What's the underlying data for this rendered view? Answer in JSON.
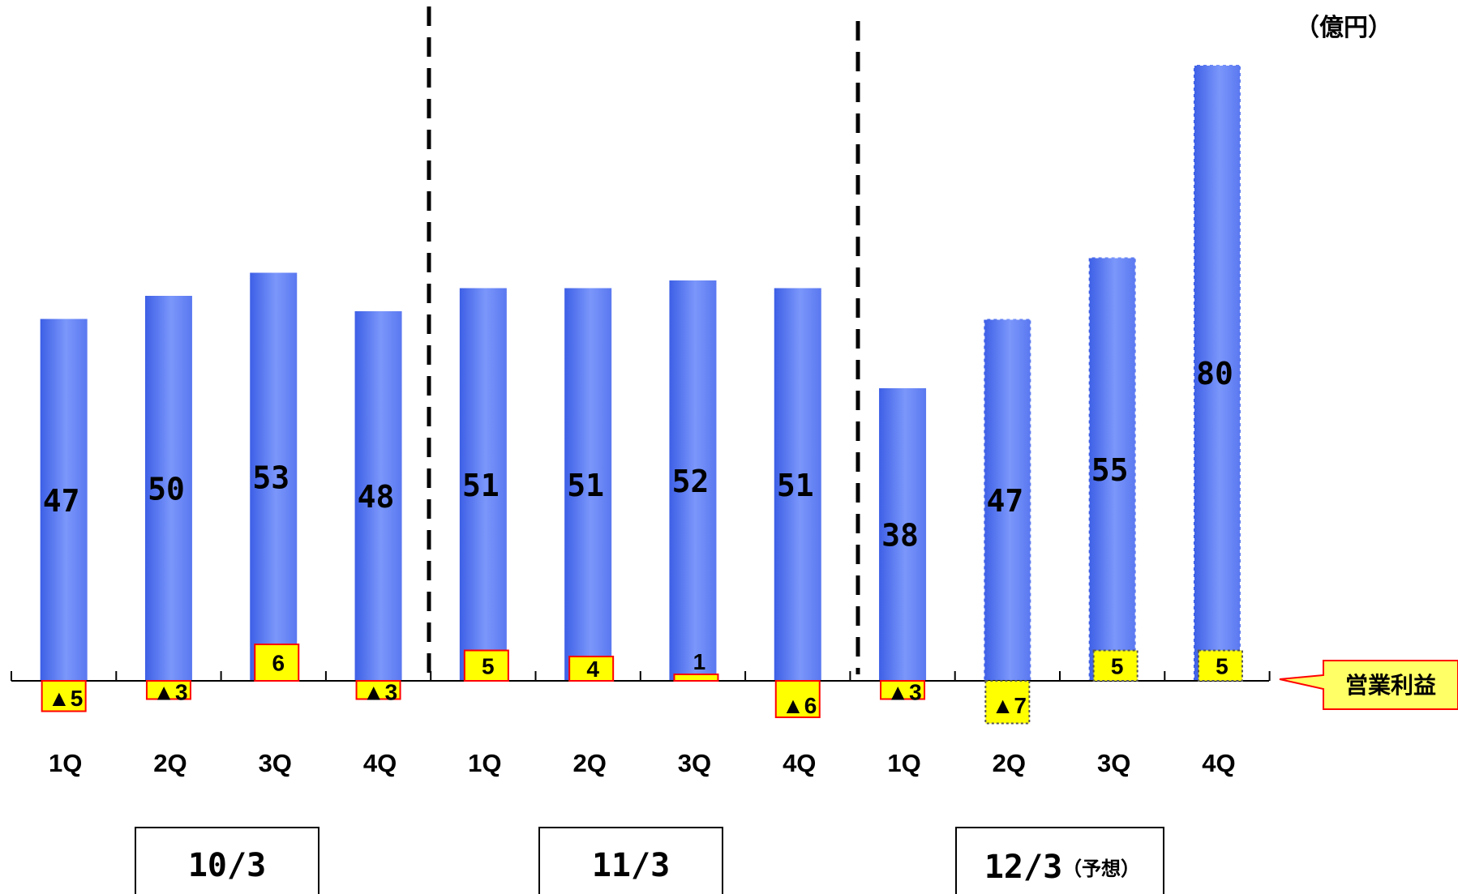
{
  "colors": {
    "bar": "#6e8ef8",
    "bar_edge": "#3d5fe6",
    "bar_highlight": "#9fb4ff",
    "box_fill": "#ffff00",
    "box_border": "#ff0000",
    "callout_fill": "#ffff66",
    "callout_border": "#ff0000",
    "divider": "#000000",
    "axis": "#000000"
  },
  "unit_label": "（億円）",
  "legend_label": "営業利益",
  "periods": [
    {
      "label": "10/3",
      "note": ""
    },
    {
      "label": "11/3",
      "note": ""
    },
    {
      "label": "12/3",
      "note": "（予想）"
    }
  ],
  "chart_data": {
    "type": "bar",
    "ylim": [
      -10,
      85
    ],
    "categories": [
      "1Q",
      "2Q",
      "3Q",
      "4Q",
      "1Q",
      "2Q",
      "3Q",
      "4Q",
      "1Q",
      "2Q",
      "3Q",
      "4Q"
    ],
    "groups": [
      {
        "label": "10/3",
        "categories": [
          "1Q",
          "2Q",
          "3Q",
          "4Q"
        ]
      },
      {
        "label": "11/3",
        "categories": [
          "1Q",
          "2Q",
          "3Q",
          "4Q"
        ]
      },
      {
        "label": "12/3（予想）",
        "categories": [
          "1Q",
          "2Q",
          "3Q",
          "4Q"
        ]
      }
    ],
    "series": [
      {
        "values": [
          47,
          50,
          53,
          48,
          51,
          51,
          52,
          51,
          38,
          47,
          55,
          80
        ],
        "labels": [
          "47",
          "50",
          "53",
          "48",
          "51",
          "51",
          "52",
          "51",
          "38",
          "47",
          "55",
          "80"
        ],
        "forecast": [
          false,
          false,
          false,
          false,
          false,
          false,
          false,
          false,
          false,
          true,
          true,
          true
        ]
      },
      {
        "name": "営業利益",
        "values": [
          -5,
          -3,
          6,
          -3,
          5,
          4,
          1,
          -6,
          -3,
          -7,
          5,
          5
        ],
        "labels": [
          "▲5",
          "▲3",
          "6",
          "▲3",
          "5",
          "4",
          "1",
          "▲6",
          "▲3",
          "▲7",
          "5",
          "5"
        ],
        "forecast": [
          false,
          false,
          false,
          false,
          false,
          false,
          false,
          false,
          false,
          true,
          true,
          true
        ]
      }
    ],
    "grid": false,
    "legend": "right"
  }
}
